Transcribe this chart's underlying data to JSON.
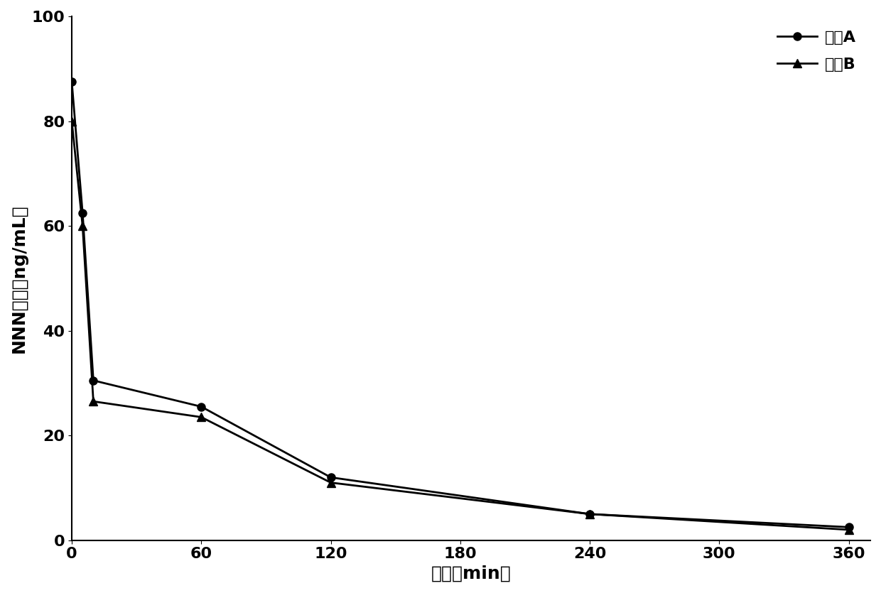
{
  "series_A": {
    "label": "家兔A",
    "x": [
      0,
      5,
      10,
      60,
      120,
      240,
      360
    ],
    "y": [
      87.5,
      62.5,
      30.5,
      25.5,
      12.0,
      5.0,
      2.5
    ],
    "color": "#000000",
    "marker": "o",
    "markersize": 8,
    "linewidth": 2
  },
  "series_B": {
    "label": "家兔B",
    "x": [
      0,
      5,
      10,
      60,
      120,
      240,
      360
    ],
    "y": [
      80.0,
      60.0,
      26.5,
      23.5,
      11.0,
      5.0,
      2.0
    ],
    "color": "#000000",
    "marker": "^",
    "markersize": 8,
    "linewidth": 2
  },
  "xlim": [
    0,
    370
  ],
  "ylim": [
    0,
    100
  ],
  "xticks": [
    0,
    60,
    120,
    180,
    240,
    300,
    360
  ],
  "yticks": [
    0,
    20,
    40,
    60,
    80,
    100
  ],
  "xlabel": "时间（min）",
  "ylabel": "NNN浓度（ng/mL）",
  "background_color": "#ffffff",
  "legend_fontsize": 16,
  "axis_fontsize": 18,
  "tick_fontsize": 16
}
